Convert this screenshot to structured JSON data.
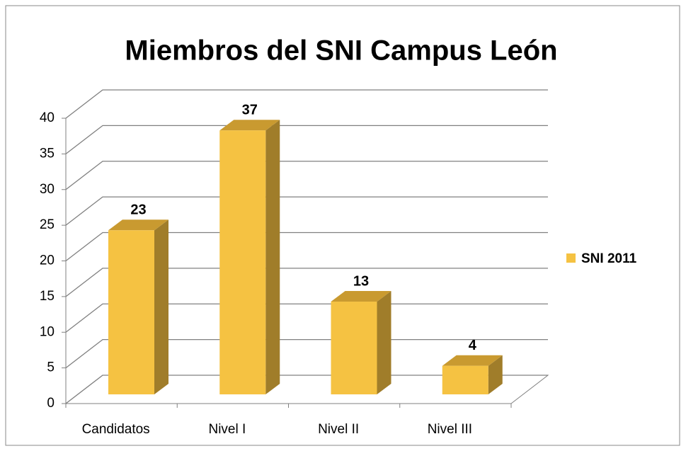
{
  "chart_data": {
    "type": "bar3d",
    "title": "Miembros del SNI Campus León",
    "categories": [
      "Candidatos",
      "Nivel I",
      "Nivel II",
      "Nivel III"
    ],
    "series": [
      {
        "name": "SNI 2011",
        "color": "#f5c242",
        "values": [
          23,
          37,
          13,
          4
        ]
      }
    ],
    "ylim": [
      0,
      40
    ],
    "yticks": [
      0,
      5,
      10,
      15,
      20,
      25,
      30,
      35,
      40
    ],
    "grid": true,
    "legend": "right"
  }
}
